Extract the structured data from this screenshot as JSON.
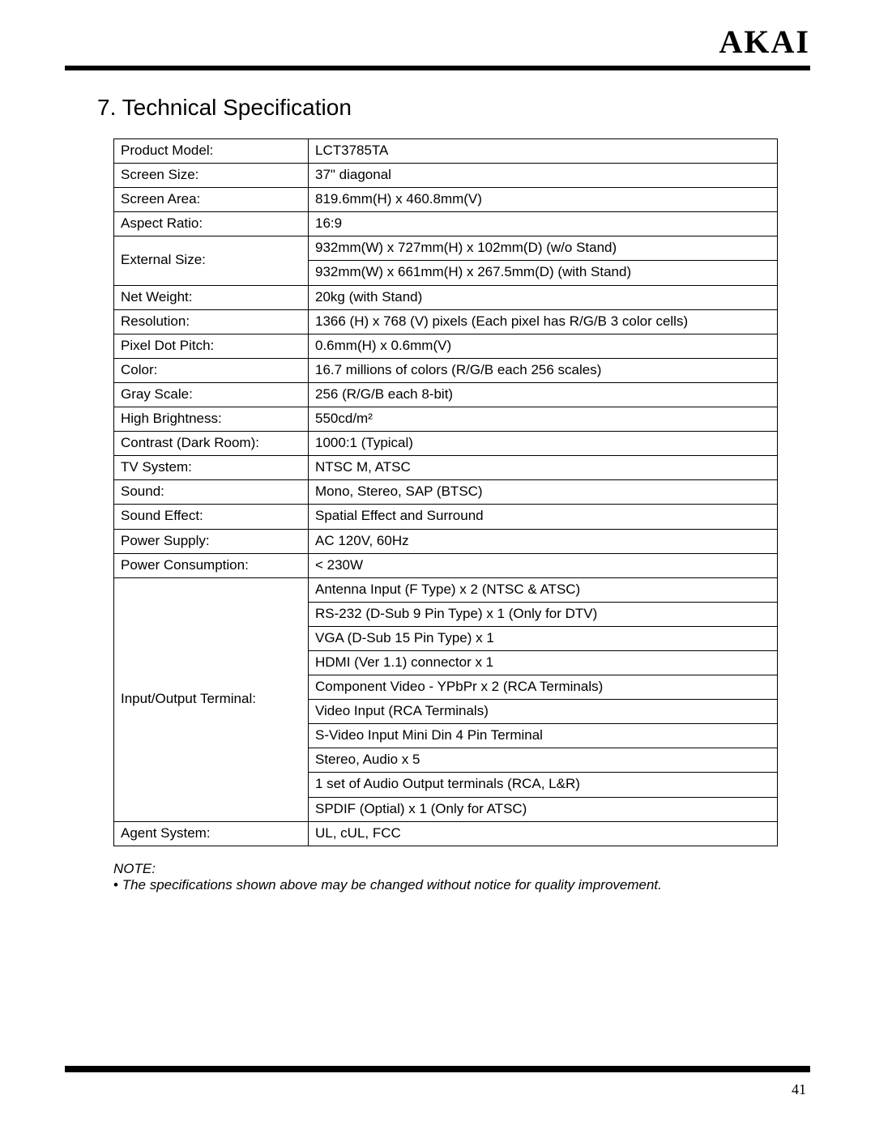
{
  "brand": "AKAI",
  "section_title": "7. Technical Specification",
  "spec": {
    "product_model": {
      "label": "Product Model:",
      "value": "LCT3785TA"
    },
    "screen_size": {
      "label": "Screen Size:",
      "value": "37\" diagonal"
    },
    "screen_area": {
      "label": "Screen Area:",
      "value": "819.6mm(H) x 460.8mm(V)"
    },
    "aspect_ratio": {
      "label": "Aspect Ratio:",
      "value": "16:9"
    },
    "external_size": {
      "label": "External Size:",
      "values": [
        "932mm(W) x 727mm(H) x 102mm(D) (w/o Stand)",
        "932mm(W) x 661mm(H) x 267.5mm(D) (with Stand)"
      ]
    },
    "net_weight": {
      "label": "Net Weight:",
      "value": "20kg (with Stand)"
    },
    "resolution": {
      "label": "Resolution:",
      "value": "1366 (H) x 768 (V) pixels (Each pixel has R/G/B 3 color cells)"
    },
    "pixel_dot_pitch": {
      "label": "Pixel Dot Pitch:",
      "value": "0.6mm(H) x 0.6mm(V)"
    },
    "color": {
      "label": "Color:",
      "value": "16.7 millions of colors (R/G/B each 256 scales)"
    },
    "gray_scale": {
      "label": "Gray Scale:",
      "value": "256 (R/G/B each 8-bit)"
    },
    "high_brightness": {
      "label": "High Brightness:",
      "value": "550cd/m²"
    },
    "contrast": {
      "label": "Contrast (Dark Room):",
      "value": "1000:1 (Typical)"
    },
    "tv_system": {
      "label": "TV System:",
      "value": "NTSC M, ATSC"
    },
    "sound": {
      "label": "Sound:",
      "value": "Mono, Stereo, SAP (BTSC)"
    },
    "sound_effect": {
      "label": "Sound Effect:",
      "value": "Spatial Effect and Surround"
    },
    "power_supply": {
      "label": "Power Supply:",
      "value": "AC 120V, 60Hz"
    },
    "power_consumption": {
      "label": "Power Consumption:",
      "value": "< 230W"
    },
    "io_terminal": {
      "label": "Input/Output Terminal:",
      "values": [
        "Antenna Input (F Type) x 2 (NTSC & ATSC)",
        "RS-232 (D-Sub 9 Pin Type) x 1 (Only for DTV)",
        "VGA (D-Sub 15 Pin Type) x 1",
        "HDMI (Ver 1.1) connector x 1",
        "Component Video - YPbPr x 2 (RCA Terminals)",
        "Video Input (RCA Terminals)",
        "S-Video Input Mini Din 4 Pin Terminal",
        "Stereo, Audio x 5",
        "1 set of Audio Output terminals (RCA, L&R)",
        "SPDIF (Optial) x 1 (Only for ATSC)"
      ]
    },
    "agent_system": {
      "label": "Agent System:",
      "value": "UL, cUL, FCC"
    }
  },
  "note_label": "NOTE:",
  "note_items": [
    "The specifications shown above may be changed without notice for quality improvement."
  ],
  "page_number": "41",
  "colors": {
    "text": "#000000",
    "background": "#ffffff",
    "rule": "#000000"
  },
  "typography": {
    "brand_fontsize": 40,
    "title_fontsize": 28,
    "body_fontsize": 17
  }
}
